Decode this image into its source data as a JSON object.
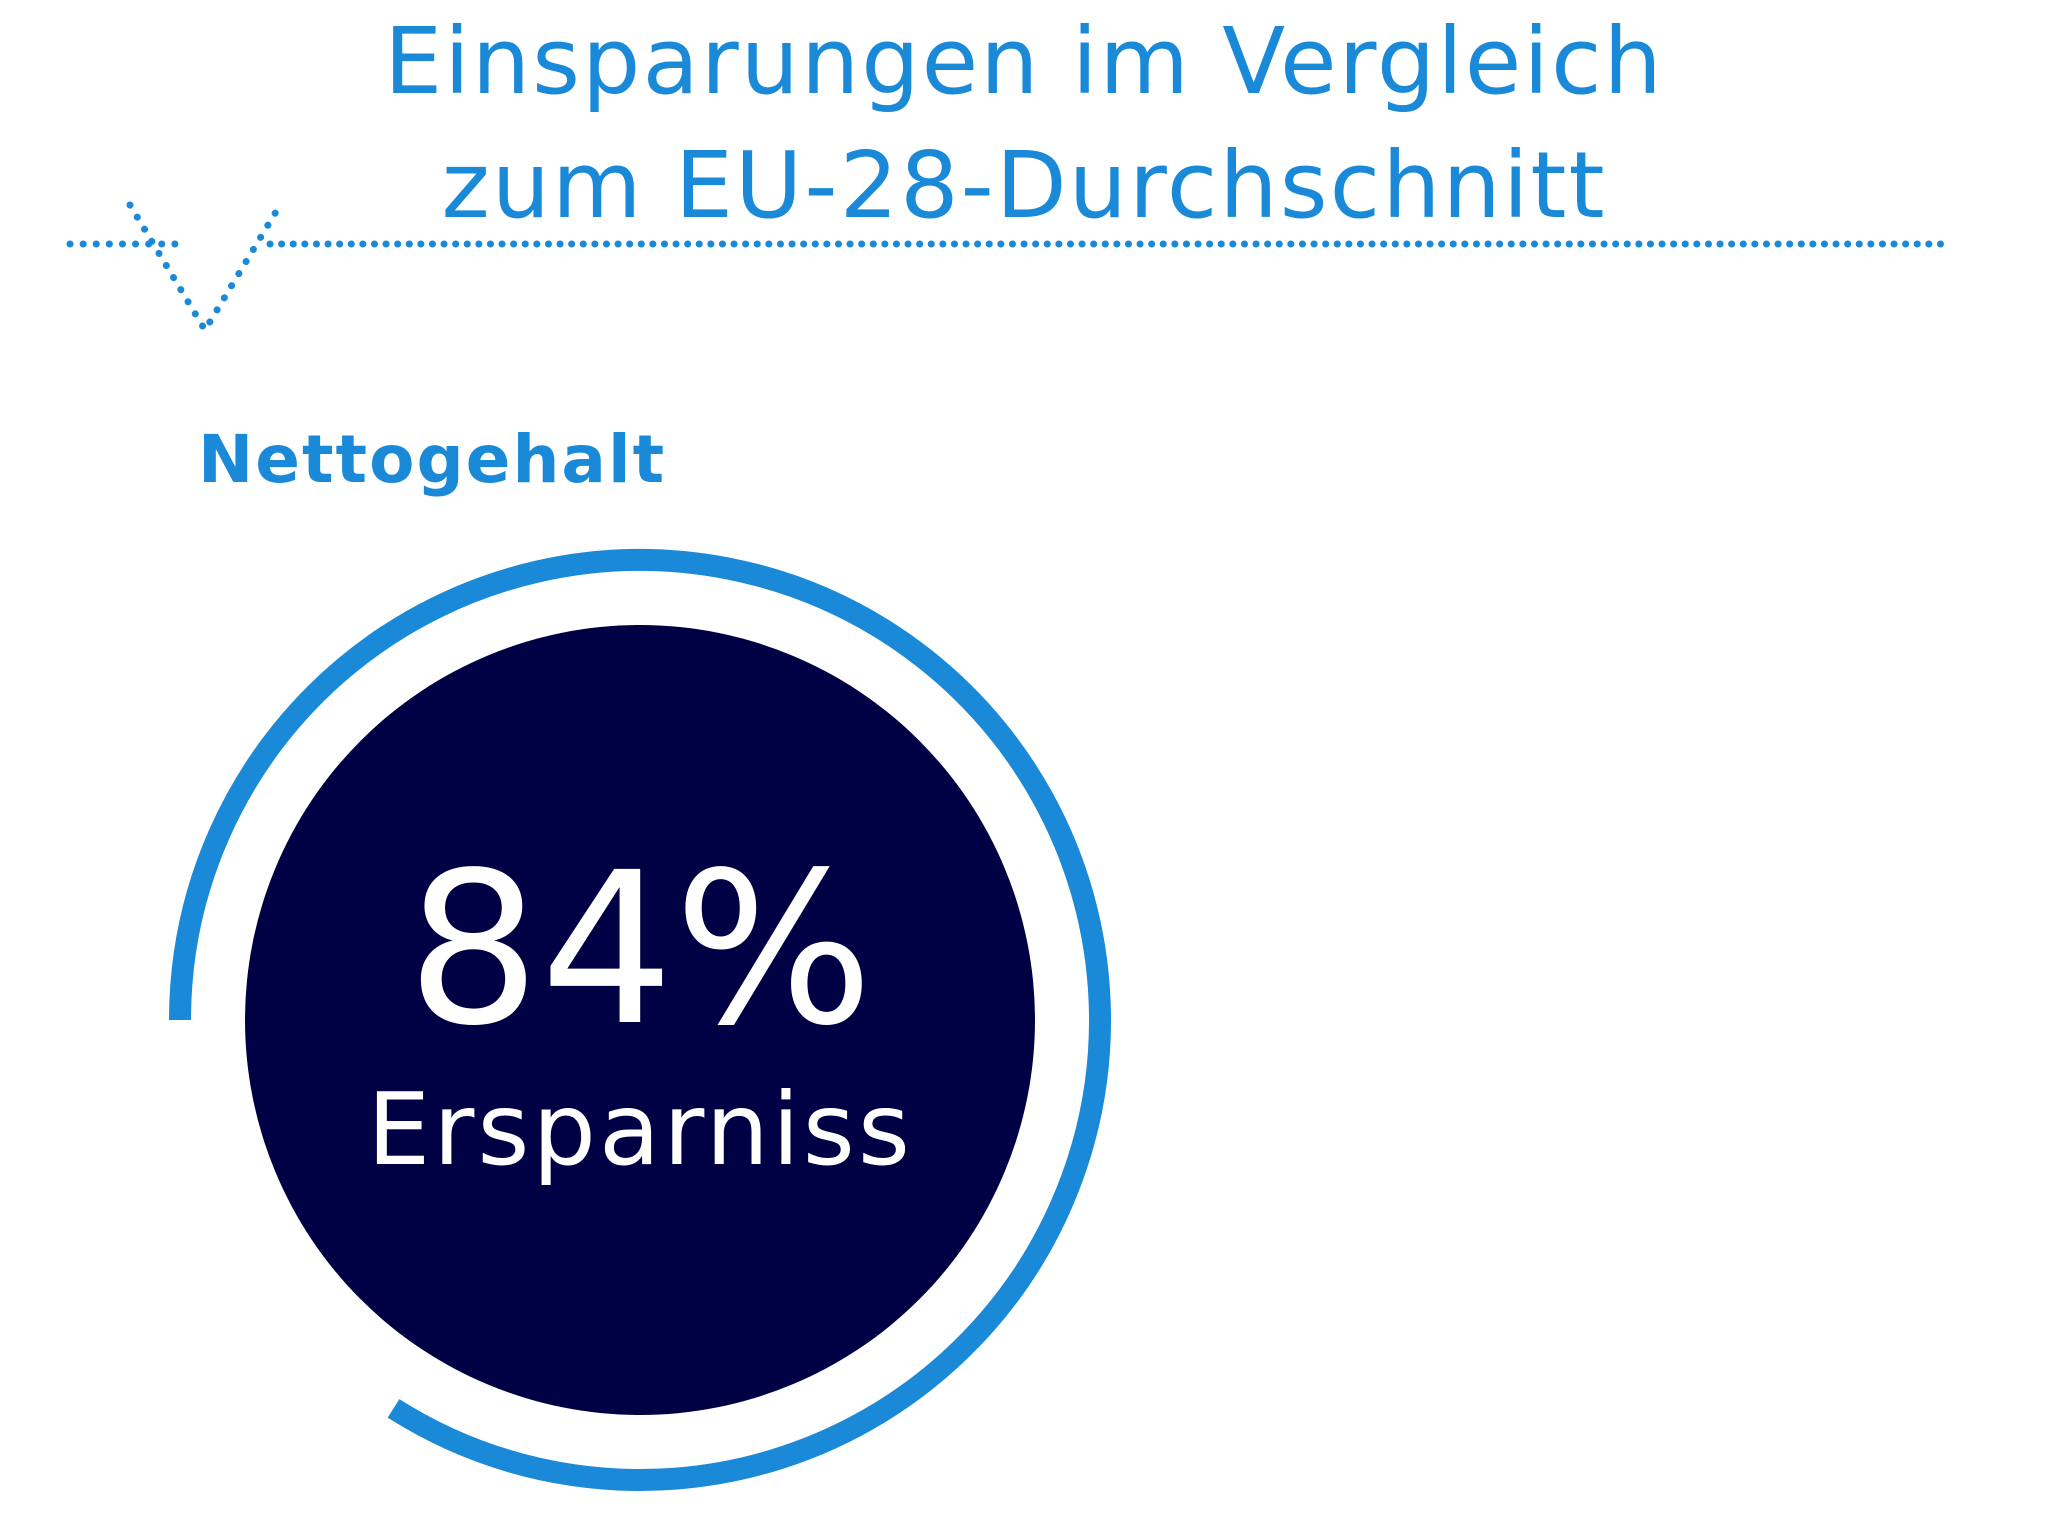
{
  "header": {
    "title_line_1": "Einsparungen im Vergleich",
    "title_line_2": "zum EU-28-Durchschnitt"
  },
  "section": {
    "label": "Nettogehalt"
  },
  "colors": {
    "accent": "#1a8ad8",
    "circle_fill": "#000045",
    "text_on_circle": "#ffffff",
    "background": "#ffffff"
  },
  "chart_data": {
    "type": "pie",
    "title": "Nettogehalt",
    "slices": [
      {
        "label": "Ersparniss",
        "value": 84
      }
    ],
    "value_label": "84%",
    "caption": "Ersparniss",
    "unit": "%"
  }
}
